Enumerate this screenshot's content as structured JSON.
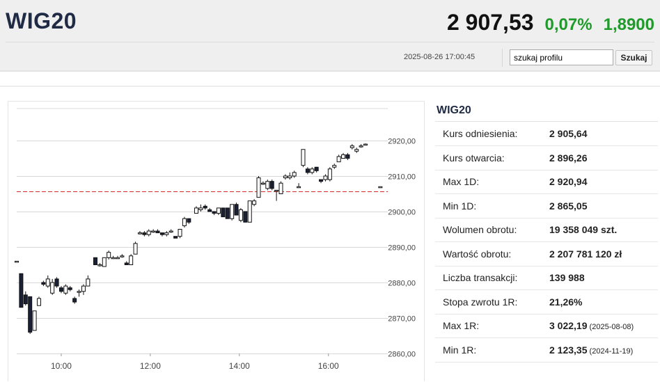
{
  "header": {
    "name": "WIG20",
    "price": "2 907,53",
    "change_pct": "0,07%",
    "change_abs": "1,8900",
    "timestamp": "2025-08-26 17:00:45",
    "search_value": "szukaj profilu",
    "search_button": "Szukaj"
  },
  "colors": {
    "up": "#1f9a2b",
    "title": "#1f2a44",
    "reference_line": "#d62b2b"
  },
  "panel": {
    "title": "WIG20",
    "rows": [
      {
        "label": "Kurs odniesienia:",
        "value": "2 905,64",
        "date": ""
      },
      {
        "label": "Kurs otwarcia:",
        "value": "2 896,26",
        "date": ""
      },
      {
        "label": "Max 1D:",
        "value": "2 920,94",
        "date": ""
      },
      {
        "label": "Min 1D:",
        "value": "2 865,05",
        "date": ""
      },
      {
        "label": "Wolumen obrotu:",
        "value": "19 358 049 szt.",
        "date": ""
      },
      {
        "label": "Wartość obrotu:",
        "value": "2 207 781 120 zł",
        "date": ""
      },
      {
        "label": "Liczba transakcji:",
        "value": "139 988",
        "date": ""
      },
      {
        "label": "Stopa zwrotu 1R:",
        "value": "21,26%",
        "date": ""
      },
      {
        "label": "Max 1R:",
        "value": "3 022,19",
        "date": "(2025-08-08)"
      },
      {
        "label": "Min 1R:",
        "value": "2 123,35",
        "date": "(2024-11-19)"
      }
    ]
  },
  "chart_data": {
    "type": "candlestick",
    "y_ticks": [
      "2920,00",
      "2910,00",
      "2900,00",
      "2890,00",
      "2880,00",
      "2870,00",
      "2860,00"
    ],
    "y_tick_values": [
      2920,
      2910,
      2900,
      2890,
      2880,
      2870,
      2860
    ],
    "x_ticks": [
      "10:00",
      "12:00",
      "14:00",
      "16:00"
    ],
    "x_tick_values": [
      600,
      720,
      840,
      960
    ],
    "ylim": [
      2857,
      2929
    ],
    "xlim": [
      540,
      1040
    ],
    "reference_line": 2905.64,
    "grid": "horizontal",
    "candles": [
      {
        "t": 540,
        "o": 2886,
        "c": 2886,
        "h": 2886,
        "l": 2886
      },
      {
        "t": 546,
        "o": 2882.5,
        "c": 2873,
        "h": 2882.5,
        "l": 2873
      },
      {
        "t": 552,
        "o": 2876.5,
        "c": 2874,
        "h": 2877.5,
        "l": 2873.5
      },
      {
        "t": 558,
        "o": 2876,
        "c": 2866,
        "h": 2876,
        "l": 2865.5
      },
      {
        "t": 564,
        "o": 2866.5,
        "c": 2872,
        "h": 2872,
        "l": 2866.5
      },
      {
        "t": 570,
        "o": 2873.5,
        "c": 2875.5,
        "h": 2876,
        "l": 2873.5
      },
      {
        "t": 576,
        "o": 2880,
        "c": 2879.5,
        "h": 2880.5,
        "l": 2879
      },
      {
        "t": 582,
        "o": 2879,
        "c": 2881,
        "h": 2882,
        "l": 2878.5
      },
      {
        "t": 588,
        "o": 2877,
        "c": 2880,
        "h": 2881,
        "l": 2876.5
      },
      {
        "t": 594,
        "o": 2881,
        "c": 2879,
        "h": 2881.5,
        "l": 2878.5
      },
      {
        "t": 600,
        "o": 2878.5,
        "c": 2877.5,
        "h": 2879,
        "l": 2877
      },
      {
        "t": 606,
        "o": 2877,
        "c": 2879,
        "h": 2879.5,
        "l": 2876.5
      },
      {
        "t": 612,
        "o": 2878.5,
        "c": 2878,
        "h": 2879,
        "l": 2877.5
      },
      {
        "t": 618,
        "o": 2875.5,
        "c": 2874.5,
        "h": 2876,
        "l": 2874
      },
      {
        "t": 624,
        "o": 2877.5,
        "c": 2877.5,
        "h": 2878,
        "l": 2876
      },
      {
        "t": 630,
        "o": 2877.5,
        "c": 2879,
        "h": 2879.5,
        "l": 2876.5
      },
      {
        "t": 636,
        "o": 2879,
        "c": 2881,
        "h": 2882,
        "l": 2879
      },
      {
        "t": 646,
        "o": 2887,
        "c": 2885,
        "h": 2887,
        "l": 2885
      },
      {
        "t": 652,
        "o": 2885,
        "c": 2885,
        "h": 2885.5,
        "l": 2884.5
      },
      {
        "t": 658,
        "o": 2884.5,
        "c": 2887,
        "h": 2887,
        "l": 2884.5
      },
      {
        "t": 664,
        "o": 2887,
        "c": 2888.5,
        "h": 2889,
        "l": 2886.5
      },
      {
        "t": 670,
        "o": 2887,
        "c": 2887,
        "h": 2887.5,
        "l": 2887
      },
      {
        "t": 676,
        "o": 2887,
        "c": 2887,
        "h": 2887.5,
        "l": 2887
      },
      {
        "t": 682,
        "o": 2887.5,
        "c": 2887.5,
        "h": 2888,
        "l": 2887
      },
      {
        "t": 688,
        "o": 2885.5,
        "c": 2885,
        "h": 2886,
        "l": 2885
      },
      {
        "t": 694,
        "o": 2885,
        "c": 2887.5,
        "h": 2888,
        "l": 2885
      },
      {
        "t": 700,
        "o": 2888,
        "c": 2891,
        "h": 2891.5,
        "l": 2888
      },
      {
        "t": 706,
        "o": 2894,
        "c": 2894,
        "h": 2894.5,
        "l": 2893.5
      },
      {
        "t": 712,
        "o": 2894,
        "c": 2893.5,
        "h": 2894.5,
        "l": 2893
      },
      {
        "t": 718,
        "o": 2893.5,
        "c": 2894.5,
        "h": 2895,
        "l": 2893
      },
      {
        "t": 724,
        "o": 2894.5,
        "c": 2894.5,
        "h": 2895,
        "l": 2894
      },
      {
        "t": 730,
        "o": 2894.5,
        "c": 2894,
        "h": 2895,
        "l": 2894
      },
      {
        "t": 736,
        "o": 2894,
        "c": 2893.5,
        "h": 2894,
        "l": 2893
      },
      {
        "t": 742,
        "o": 2893.5,
        "c": 2894,
        "h": 2894.5,
        "l": 2893
      },
      {
        "t": 748,
        "o": 2894.5,
        "c": 2894.5,
        "h": 2895,
        "l": 2894
      },
      {
        "t": 754,
        "o": 2893,
        "c": 2892.5,
        "h": 2893,
        "l": 2892.5
      },
      {
        "t": 760,
        "o": 2893,
        "c": 2895,
        "h": 2895,
        "l": 2892.5
      },
      {
        "t": 766,
        "o": 2896,
        "c": 2898,
        "h": 2898.5,
        "l": 2895.5
      },
      {
        "t": 772,
        "o": 2898,
        "c": 2897,
        "h": 2898,
        "l": 2896.5
      },
      {
        "t": 782,
        "o": 2899.5,
        "c": 2901,
        "h": 2901.5,
        "l": 2899.5
      },
      {
        "t": 788,
        "o": 2900.5,
        "c": 2901,
        "h": 2902,
        "l": 2900
      },
      {
        "t": 794,
        "o": 2901.5,
        "c": 2901,
        "h": 2902,
        "l": 2900.5
      },
      {
        "t": 800,
        "o": 2900.5,
        "c": 2900,
        "h": 2901,
        "l": 2900
      },
      {
        "t": 806,
        "o": 2900,
        "c": 2899.5,
        "h": 2900,
        "l": 2899
      },
      {
        "t": 812,
        "o": 2899.5,
        "c": 2901,
        "h": 2901,
        "l": 2899
      },
      {
        "t": 818,
        "o": 2901,
        "c": 2898.5,
        "h": 2901,
        "l": 2898.5
      },
      {
        "t": 824,
        "o": 2901,
        "c": 2898,
        "h": 2901,
        "l": 2898
      },
      {
        "t": 830,
        "o": 2898,
        "c": 2902,
        "h": 2902,
        "l": 2897.5
      },
      {
        "t": 836,
        "o": 2902,
        "c": 2899,
        "h": 2902.5,
        "l": 2899
      },
      {
        "t": 842,
        "o": 2897.5,
        "c": 2900.5,
        "h": 2901,
        "l": 2897
      },
      {
        "t": 848,
        "o": 2900,
        "c": 2897,
        "h": 2900,
        "l": 2897
      },
      {
        "t": 854,
        "o": 2897,
        "c": 2903,
        "h": 2903,
        "l": 2897
      },
      {
        "t": 860,
        "o": 2902,
        "c": 2903,
        "h": 2903.5,
        "l": 2901.5
      },
      {
        "t": 866,
        "o": 2904,
        "c": 2909.5,
        "h": 2910,
        "l": 2904
      },
      {
        "t": 872,
        "o": 2908,
        "c": 2908,
        "h": 2908.5,
        "l": 2907.5
      },
      {
        "t": 878,
        "o": 2906.5,
        "c": 2908.5,
        "h": 2909,
        "l": 2906
      },
      {
        "t": 884,
        "o": 2908.5,
        "c": 2906.5,
        "h": 2909,
        "l": 2906
      },
      {
        "t": 890,
        "o": 2906,
        "c": 2906,
        "h": 2906,
        "l": 2903
      },
      {
        "t": 896,
        "o": 2905,
        "c": 2908,
        "h": 2908.5,
        "l": 2905
      },
      {
        "t": 902,
        "o": 2909.5,
        "c": 2910,
        "h": 2910.5,
        "l": 2909
      },
      {
        "t": 908,
        "o": 2909.5,
        "c": 2910,
        "h": 2911,
        "l": 2909
      },
      {
        "t": 914,
        "o": 2910,
        "c": 2911,
        "h": 2911.5,
        "l": 2909.5
      },
      {
        "t": 920,
        "o": 2907,
        "c": 2907,
        "h": 2908,
        "l": 2907
      },
      {
        "t": 926,
        "o": 2913,
        "c": 2917.5,
        "h": 2917.5,
        "l": 2912.5
      },
      {
        "t": 932,
        "o": 2912,
        "c": 2911,
        "h": 2912.5,
        "l": 2910.5
      },
      {
        "t": 938,
        "o": 2911,
        "c": 2912,
        "h": 2912.5,
        "l": 2910.5
      },
      {
        "t": 944,
        "o": 2912.5,
        "c": 2911.5,
        "h": 2912.5,
        "l": 2911
      },
      {
        "t": 950,
        "o": 2909,
        "c": 2908.5,
        "h": 2909,
        "l": 2908
      },
      {
        "t": 956,
        "o": 2909,
        "c": 2910,
        "h": 2910.5,
        "l": 2908.5
      },
      {
        "t": 962,
        "o": 2909,
        "c": 2912,
        "h": 2912.5,
        "l": 2908.5
      },
      {
        "t": 968,
        "o": 2912.5,
        "c": 2913,
        "h": 2913.5,
        "l": 2912
      },
      {
        "t": 974,
        "o": 2914,
        "c": 2915.5,
        "h": 2916,
        "l": 2914
      },
      {
        "t": 980,
        "o": 2915,
        "c": 2916,
        "h": 2916.5,
        "l": 2915
      },
      {
        "t": 986,
        "o": 2916,
        "c": 2915,
        "h": 2916.5,
        "l": 2914.5
      },
      {
        "t": 992,
        "o": 2918,
        "c": 2918.5,
        "h": 2919,
        "l": 2917.5
      },
      {
        "t": 998,
        "o": 2917,
        "c": 2917.5,
        "h": 2918,
        "l": 2916.5
      },
      {
        "t": 1004,
        "o": 2918.5,
        "c": 2918.5,
        "h": 2919,
        "l": 2918
      },
      {
        "t": 1010,
        "o": 2919,
        "c": 2919,
        "h": 2919.2,
        "l": 2918.8
      },
      {
        "t": 1030,
        "o": 2907,
        "c": 2907,
        "h": 2907,
        "l": 2907
      }
    ]
  }
}
